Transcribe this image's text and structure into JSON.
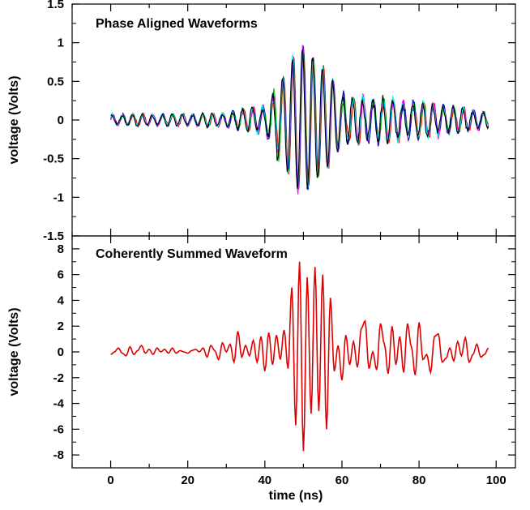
{
  "chart_data": [
    {
      "type": "line",
      "title": "Phase Aligned Waveforms",
      "ylabel": "voltage (Volts)",
      "xlabel": "",
      "xlim": [
        -10,
        105
      ],
      "ylim": [
        -1.5,
        1.5
      ],
      "grid": false,
      "y_ticks": [
        "1.5",
        "1",
        "0.5",
        "0",
        "-0.5",
        "-1",
        "-1.5"
      ],
      "y_tick_values": [
        1.5,
        1,
        0.5,
        0,
        -0.5,
        -1,
        -1.5
      ],
      "x_tick_values": [
        0,
        20,
        40,
        60,
        80,
        100
      ],
      "series_colors": [
        "#ff0000",
        "#00cc00",
        "#0000cc",
        "#ff00ff",
        "#00ffff",
        "#000000"
      ],
      "series_count": 6,
      "x_range": [
        0,
        98
      ],
      "envelope": [
        {
          "x": 0,
          "amp": 0.08
        },
        {
          "x": 20,
          "amp": 0.08
        },
        {
          "x": 30,
          "amp": 0.1
        },
        {
          "x": 40,
          "amp": 0.2
        },
        {
          "x": 44,
          "amp": 0.55
        },
        {
          "x": 48,
          "amp": 1.05
        },
        {
          "x": 50,
          "amp": 1.1
        },
        {
          "x": 54,
          "amp": 0.85
        },
        {
          "x": 57,
          "amp": 0.7
        },
        {
          "x": 60,
          "amp": 0.35
        },
        {
          "x": 70,
          "amp": 0.3
        },
        {
          "x": 80,
          "amp": 0.25
        },
        {
          "x": 90,
          "amp": 0.18
        },
        {
          "x": 98,
          "amp": 0.1
        }
      ]
    },
    {
      "type": "line",
      "title": "Coherently Summed Waveform",
      "ylabel": "voltage (Volts)",
      "xlabel": "time (ns)",
      "xlim": [
        -10,
        105
      ],
      "ylim": [
        -9,
        9
      ],
      "grid": false,
      "y_ticks": [
        "8",
        "6",
        "4",
        "2",
        "0",
        "-2",
        "-4",
        "-6",
        "-8"
      ],
      "y_tick_values": [
        8,
        6,
        4,
        2,
        0,
        -2,
        -4,
        -6,
        -8
      ],
      "x_ticks": [
        "0",
        "20",
        "40",
        "60",
        "80",
        "100"
      ],
      "x_tick_values": [
        0,
        20,
        40,
        60,
        80,
        100
      ],
      "series": [
        {
          "color": "#dd0000",
          "points": [
            [
              0,
              -0.2
            ],
            [
              1,
              0.0
            ],
            [
              2,
              0.3
            ],
            [
              3,
              -0.1
            ],
            [
              4,
              -0.3
            ],
            [
              5,
              0.4
            ],
            [
              6,
              -0.2
            ],
            [
              7,
              0.1
            ],
            [
              8,
              0.5
            ],
            [
              9,
              -0.1
            ],
            [
              10,
              0.2
            ],
            [
              11,
              -0.2
            ],
            [
              12,
              0.3
            ],
            [
              13,
              0.0
            ],
            [
              14,
              0.2
            ],
            [
              15,
              -0.1
            ],
            [
              16,
              0.3
            ],
            [
              17,
              -0.1
            ],
            [
              18,
              0.1
            ],
            [
              19,
              0.0
            ],
            [
              20,
              -0.1
            ],
            [
              21,
              0.1
            ],
            [
              22,
              0.2
            ],
            [
              23,
              0.0
            ],
            [
              24,
              0.3
            ],
            [
              25,
              -0.4
            ],
            [
              26,
              0.5
            ],
            [
              27,
              0.1
            ],
            [
              28,
              -0.6
            ],
            [
              29,
              0.7
            ],
            [
              30,
              0.0
            ],
            [
              31,
              0.6
            ],
            [
              32,
              -0.8
            ],
            [
              33,
              1.6
            ],
            [
              34,
              -0.4
            ],
            [
              35,
              0.5
            ],
            [
              36,
              -0.3
            ],
            [
              37,
              0.9
            ],
            [
              38,
              -0.8
            ],
            [
              39,
              1.2
            ],
            [
              40,
              -1.5
            ],
            [
              41,
              1.5
            ],
            [
              42,
              -1.0
            ],
            [
              43,
              1.3
            ],
            [
              44,
              -0.6
            ],
            [
              45,
              1.7
            ],
            [
              46,
              -1.3
            ],
            [
              47,
              5.0
            ],
            [
              48,
              -5.7
            ],
            [
              49,
              7.0
            ],
            [
              50,
              -7.7
            ],
            [
              51,
              5.8
            ],
            [
              52,
              -4.8
            ],
            [
              53,
              6.6
            ],
            [
              54,
              -4.6
            ],
            [
              55,
              6.0
            ],
            [
              56,
              -6.0
            ],
            [
              57,
              4.2
            ],
            [
              58,
              -1.5
            ],
            [
              59,
              0.5
            ],
            [
              60,
              -2.2
            ],
            [
              61,
              1.3
            ],
            [
              62,
              -1.0
            ],
            [
              63,
              0.8
            ],
            [
              64,
              -1.2
            ],
            [
              65,
              1.8
            ],
            [
              66,
              2.4
            ],
            [
              67,
              -1.3
            ],
            [
              68,
              0.0
            ],
            [
              69,
              -1.4
            ],
            [
              70,
              2.2
            ],
            [
              71,
              0.6
            ],
            [
              72,
              -1.7
            ],
            [
              73,
              2.0
            ],
            [
              74,
              -1.0
            ],
            [
              75,
              1.2
            ],
            [
              76,
              -1.6
            ],
            [
              77,
              2.2
            ],
            [
              78,
              0.4
            ],
            [
              79,
              -1.8
            ],
            [
              80,
              2.3
            ],
            [
              81,
              -0.6
            ],
            [
              82,
              -0.2
            ],
            [
              83,
              -1.6
            ],
            [
              84,
              1.2
            ],
            [
              85,
              1.4
            ],
            [
              86,
              -0.8
            ],
            [
              87,
              -0.5
            ],
            [
              88,
              0.3
            ],
            [
              89,
              -0.7
            ],
            [
              90,
              0.8
            ],
            [
              91,
              -0.3
            ],
            [
              92,
              1.1
            ],
            [
              93,
              -0.8
            ],
            [
              94,
              -0.2
            ],
            [
              95,
              0.6
            ],
            [
              96,
              -0.4
            ],
            [
              97,
              -0.2
            ],
            [
              98,
              0.3
            ]
          ]
        }
      ]
    }
  ]
}
